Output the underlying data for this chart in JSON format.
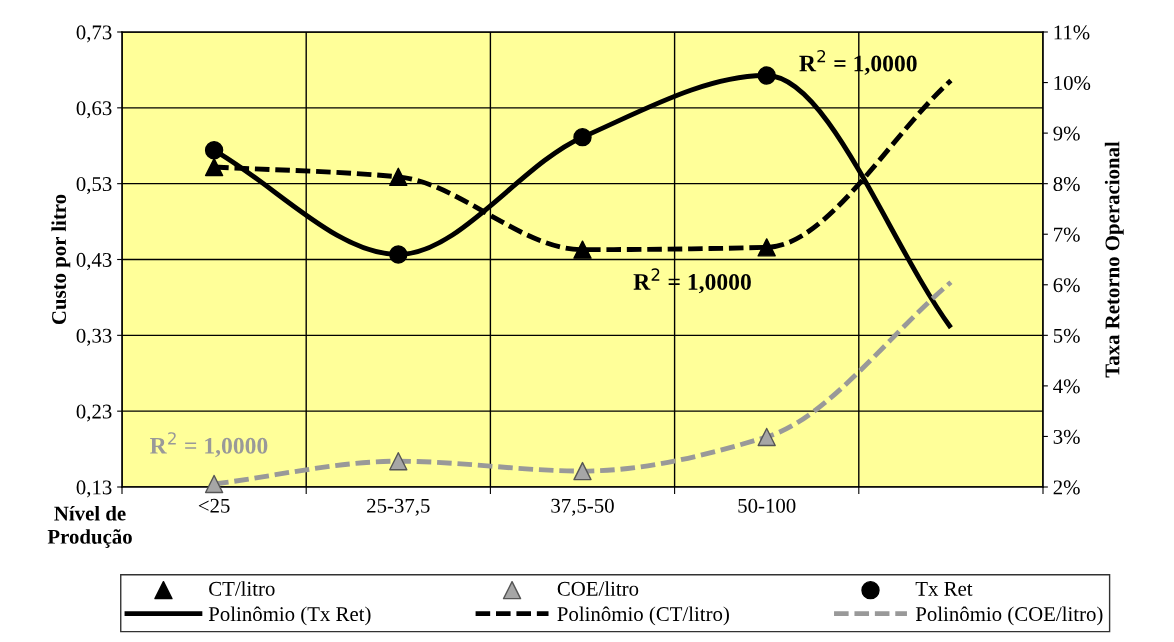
{
  "chart_data": {
    "type": "scatter",
    "ylabel": "Custo por litro",
    "y2label": "Taxa Retorno Operacional",
    "xlabel": "Nível de\nProdução",
    "categories": [
      "<25",
      "25-37,5",
      "37,5-50",
      "50-100",
      null
    ],
    "ylim": [
      0.13,
      0.73
    ],
    "yticks": [
      {
        "value": 0.13,
        "label": "0,13"
      },
      {
        "value": 0.23,
        "label": "0,23"
      },
      {
        "value": 0.33,
        "label": "0,33"
      },
      {
        "value": 0.43,
        "label": "0,43"
      },
      {
        "value": 0.53,
        "label": "0,53"
      },
      {
        "value": 0.63,
        "label": "0,63"
      },
      {
        "value": 0.73,
        "label": "0,73"
      }
    ],
    "y2lim": [
      2,
      11
    ],
    "y2ticks": [
      {
        "value": 2,
        "label": "2%"
      },
      {
        "value": 3,
        "label": "3%"
      },
      {
        "value": 4,
        "label": "4%"
      },
      {
        "value": 5,
        "label": "5%"
      },
      {
        "value": 6,
        "label": "6%"
      },
      {
        "value": 7,
        "label": "7%"
      },
      {
        "value": 8,
        "label": "8%"
      },
      {
        "value": 9,
        "label": "9%"
      },
      {
        "value": 10,
        "label": "10%"
      },
      {
        "value": 11,
        "label": "11%"
      }
    ],
    "grid": true,
    "legend": "bottom",
    "series": [
      {
        "name": "CT/litro",
        "marker": "triangle",
        "color": "#000000",
        "values": [
          0.552,
          0.539,
          0.443,
          0.446,
          null
        ]
      },
      {
        "name": "COE/litro",
        "marker": "triangle",
        "color": "#a6a6a6",
        "values": [
          0.134,
          0.164,
          0.151,
          0.196,
          null
        ]
      },
      {
        "name": "Tx Ret",
        "marker": "circle",
        "color": "#000000",
        "axis": "y2",
        "values": [
          8.66,
          6.6,
          8.92,
          10.14,
          null
        ]
      },
      {
        "name": "Polinômio (Tx Ret)",
        "type": "line",
        "line_style": "solid",
        "color": "#000000",
        "axis": "y2",
        "values": [
          8.66,
          6.6,
          8.92,
          10.14,
          5.15
        ]
      },
      {
        "name": "Polinômio (CT/litro)",
        "type": "line",
        "line_style": "dashed",
        "color": "#000000",
        "values": [
          0.552,
          0.539,
          0.443,
          0.446,
          0.666
        ]
      },
      {
        "name": "Polinômio (COE/litro)",
        "type": "line",
        "line_style": "dashed",
        "color": "#999999",
        "values": [
          0.134,
          0.164,
          0.151,
          0.196,
          0.4
        ]
      }
    ],
    "annotations": [
      "R$^{2}$ = 1,0000",
      "R$^{2}$ = 1,0000",
      "R$^{2}$ = 1,0000"
    ]
  }
}
